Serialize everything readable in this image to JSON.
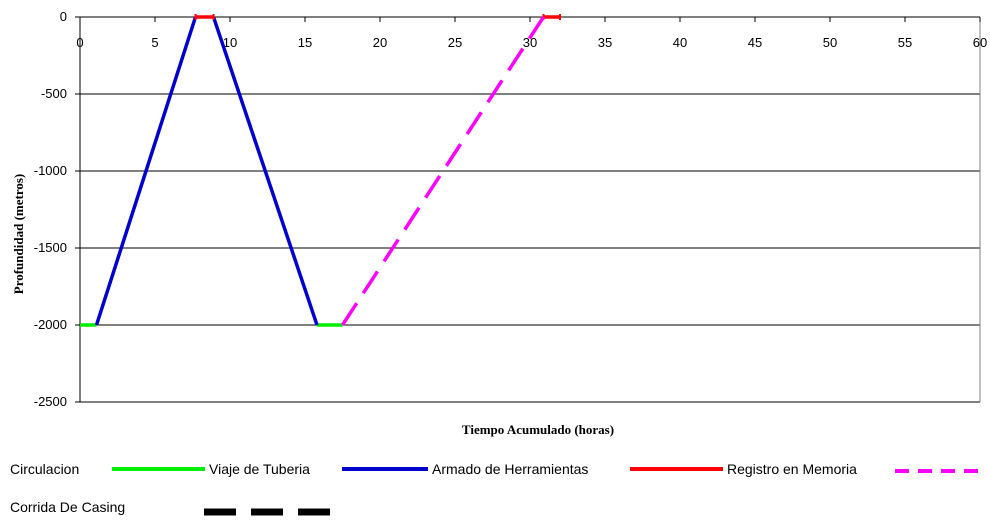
{
  "chart_data": {
    "type": "line",
    "xlabel": "Tiempo Acumulado (horas)",
    "ylabel": "Profundidad (metros)",
    "xlim": [
      0,
      60
    ],
    "ylim": [
      -2500,
      0
    ],
    "x_ticks": [
      0,
      5,
      10,
      15,
      20,
      25,
      30,
      35,
      40,
      45,
      50,
      55,
      60
    ],
    "y_ticks": [
      0,
      -500,
      -1000,
      -1500,
      -2000,
      -2500
    ],
    "grid": "horizontal",
    "legend_position": "bottom",
    "series": [
      {
        "name": "Circulacion",
        "color": "#00ee00",
        "dash": "solid",
        "segments": [
          [
            [
              0,
              -2000
            ],
            [
              1.1,
              -2000
            ]
          ],
          [
            [
              15.8,
              -2000
            ],
            [
              17.5,
              -2000
            ]
          ]
        ]
      },
      {
        "name": "Viaje de Tuberia",
        "color": "#0000cc",
        "dash": "solid",
        "segments": [
          [
            [
              1.1,
              -2000
            ],
            [
              7.7,
              0
            ]
          ],
          [
            [
              8.9,
              0
            ],
            [
              15.8,
              -2000
            ]
          ]
        ]
      },
      {
        "name": "Armado de Herramientas",
        "color": "#ff0000",
        "dash": "solid",
        "segments": [
          [
            [
              7.7,
              0
            ],
            [
              8.9,
              0
            ]
          ],
          [
            [
              30.9,
              0
            ],
            [
              32.0,
              0
            ]
          ]
        ]
      },
      {
        "name": "Registro en Memoria",
        "color": "#ff00ff",
        "dash": "dashed",
        "segments": [
          [
            [
              17.5,
              -2000
            ],
            [
              30.9,
              0
            ]
          ]
        ]
      },
      {
        "name": "Corrida De Casing",
        "color": "#000000",
        "dash": "dashed",
        "segments": []
      }
    ]
  }
}
